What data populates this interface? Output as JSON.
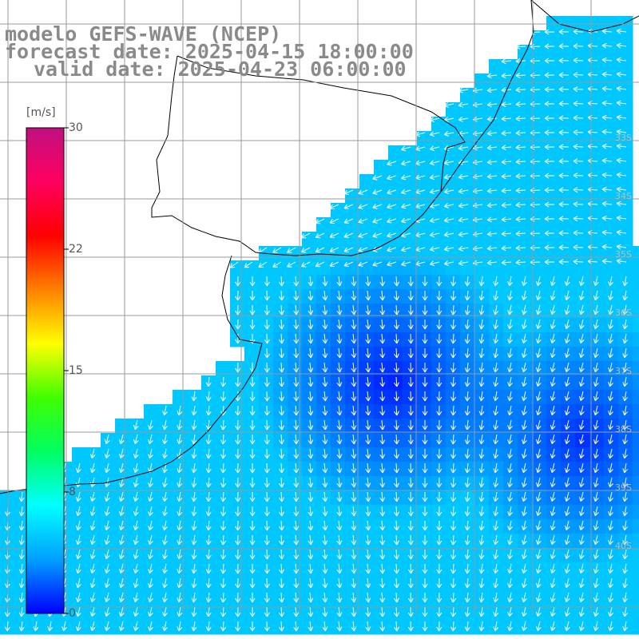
{
  "title": {
    "model": "modelo GEFS-WAVE (NCEP)",
    "forecast": "forecast date: 2025-04-15 18:00:00",
    "valid": "valid date: 2025-04-23 06:00:00"
  },
  "colorbar": {
    "unit": "[m/s]",
    "min": 0,
    "max": 30,
    "ticks": [
      "30",
      "22",
      "15",
      "8",
      "0"
    ],
    "colors": [
      "#0000ff",
      "#00a0ff",
      "#00ffff",
      "#00ff60",
      "#40ff00",
      "#ffff00",
      "#ff8000",
      "#ff0000",
      "#ff0060",
      "#c01080"
    ]
  },
  "map": {
    "lat_labels": [
      "33S",
      "34S",
      "35S",
      "36S",
      "37S",
      "38S",
      "39S",
      "40S"
    ],
    "land_color": "#ffffff",
    "grid_color": "#999999",
    "arrow_color": "#ffffff"
  }
}
